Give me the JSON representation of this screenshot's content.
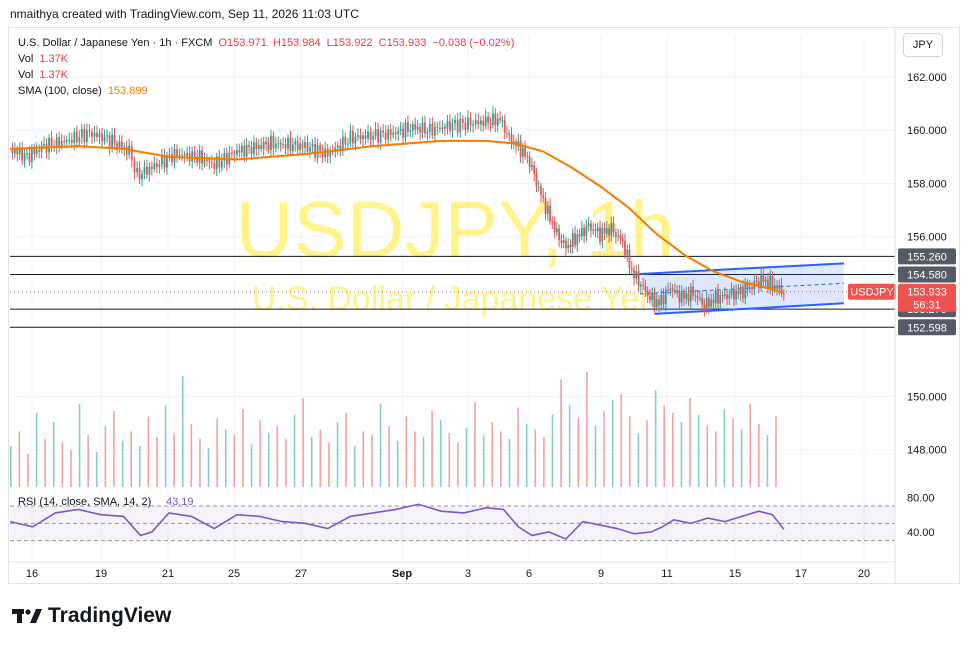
{
  "header": {
    "credit": "nmaithya created with TradingView.com, Sep 11, 2026 11:03 UTC"
  },
  "legend": {
    "symbol": "U.S. Dollar / Japanese Yen · 1h · FXCM",
    "open": "O153.971",
    "high": "H153.984",
    "low": "L153.922",
    "close": "C153.933",
    "change": "−0.038 (−0.02%)",
    "vol_label": "Vol",
    "vol_value": "1.37K",
    "sma_label": "SMA (100, close)",
    "sma_value": "153.899"
  },
  "currency_button": "JPY",
  "watermark": {
    "ticker": "USDJPY, 1h",
    "name": "U.S. Dollar / Japanese Yen"
  },
  "brand": {
    "name": "TradingView"
  },
  "colors": {
    "up": "#26a69a",
    "down": "#ef5350",
    "sma": "#f57c00",
    "channel": "#2962ff",
    "rsi": "#7e57c2",
    "hline": "#131722",
    "watermark": "#fff176"
  },
  "chart_data": {
    "type": "candlestick",
    "symbol": "USDJPY",
    "timeframe": "1h",
    "ylim": [
      146.6,
      163.2
    ],
    "y_ticks": [
      "162.000",
      "160.000",
      "158.000",
      "156.000",
      "150.000",
      "148.000"
    ],
    "x_ticks": [
      "16",
      "19",
      "21",
      "25",
      "27",
      "Sep",
      "3",
      "6",
      "9",
      "11",
      "15",
      "17",
      "20"
    ],
    "close_path": [
      {
        "x": 0,
        "y": 159.3
      },
      {
        "x": 15,
        "y": 159.0
      },
      {
        "x": 30,
        "y": 159.4
      },
      {
        "x": 50,
        "y": 159.6
      },
      {
        "x": 70,
        "y": 159.9
      },
      {
        "x": 90,
        "y": 159.6
      },
      {
        "x": 105,
        "y": 159.2
      },
      {
        "x": 112,
        "y": 158.3
      },
      {
        "x": 125,
        "y": 158.6
      },
      {
        "x": 145,
        "y": 159.1
      },
      {
        "x": 165,
        "y": 159.0
      },
      {
        "x": 180,
        "y": 158.7
      },
      {
        "x": 200,
        "y": 159.2
      },
      {
        "x": 230,
        "y": 159.5
      },
      {
        "x": 260,
        "y": 159.4
      },
      {
        "x": 280,
        "y": 159.1
      },
      {
        "x": 300,
        "y": 159.7
      },
      {
        "x": 320,
        "y": 159.8
      },
      {
        "x": 340,
        "y": 159.9
      },
      {
        "x": 355,
        "y": 160.1
      },
      {
        "x": 370,
        "y": 160.0
      },
      {
        "x": 390,
        "y": 160.2
      },
      {
        "x": 415,
        "y": 160.3
      },
      {
        "x": 432,
        "y": 160.4
      },
      {
        "x": 440,
        "y": 159.7
      },
      {
        "x": 450,
        "y": 159.3
      },
      {
        "x": 458,
        "y": 158.8
      },
      {
        "x": 466,
        "y": 157.8
      },
      {
        "x": 474,
        "y": 156.9
      },
      {
        "x": 482,
        "y": 156.1
      },
      {
        "x": 490,
        "y": 155.6
      },
      {
        "x": 500,
        "y": 156.0
      },
      {
        "x": 510,
        "y": 156.4
      },
      {
        "x": 520,
        "y": 156.1
      },
      {
        "x": 530,
        "y": 156.3
      },
      {
        "x": 540,
        "y": 155.8
      },
      {
        "x": 548,
        "y": 154.7
      },
      {
        "x": 556,
        "y": 154.2
      },
      {
        "x": 564,
        "y": 153.7
      },
      {
        "x": 572,
        "y": 153.5
      },
      {
        "x": 582,
        "y": 154.1
      },
      {
        "x": 592,
        "y": 153.7
      },
      {
        "x": 602,
        "y": 153.9
      },
      {
        "x": 612,
        "y": 153.4
      },
      {
        "x": 622,
        "y": 153.7
      },
      {
        "x": 632,
        "y": 153.8
      },
      {
        "x": 642,
        "y": 153.9
      },
      {
        "x": 652,
        "y": 154.1
      },
      {
        "x": 662,
        "y": 154.4
      },
      {
        "x": 672,
        "y": 154.2
      },
      {
        "x": 682,
        "y": 153.93
      }
    ],
    "sma100_path": [
      {
        "x": 0,
        "y": 159.3
      },
      {
        "x": 60,
        "y": 159.4
      },
      {
        "x": 100,
        "y": 159.3
      },
      {
        "x": 140,
        "y": 159.0
      },
      {
        "x": 200,
        "y": 158.9
      },
      {
        "x": 260,
        "y": 159.1
      },
      {
        "x": 320,
        "y": 159.4
      },
      {
        "x": 380,
        "y": 159.6
      },
      {
        "x": 420,
        "y": 159.6
      },
      {
        "x": 445,
        "y": 159.5
      },
      {
        "x": 470,
        "y": 159.2
      },
      {
        "x": 495,
        "y": 158.6
      },
      {
        "x": 520,
        "y": 157.9
      },
      {
        "x": 545,
        "y": 157.1
      },
      {
        "x": 570,
        "y": 156.1
      },
      {
        "x": 595,
        "y": 155.3
      },
      {
        "x": 620,
        "y": 154.7
      },
      {
        "x": 645,
        "y": 154.3
      },
      {
        "x": 665,
        "y": 154.1
      },
      {
        "x": 682,
        "y": 153.899
      }
    ],
    "horizontal_levels": [
      {
        "value": 155.26,
        "label": "155.260"
      },
      {
        "value": 154.58,
        "label": "154.580"
      },
      {
        "value": 153.279,
        "label": "153.279"
      },
      {
        "value": 152.598,
        "label": "152.598"
      }
    ],
    "last_price": {
      "symbol": "USDJPY",
      "value": 153.933,
      "label": "153.933",
      "countdown": "56:31"
    },
    "channel": {
      "upper": [
        {
          "x": 555,
          "y": 154.6
        },
        {
          "x": 735,
          "y": 155.0
        }
      ],
      "lower": [
        {
          "x": 568,
          "y": 153.1
        },
        {
          "x": 735,
          "y": 153.5
        }
      ]
    },
    "rsi": {
      "label": "RSI (14, close, SMA, 14, 2)",
      "value": "43.19",
      "ylim": [
        25,
        85
      ],
      "ticks": [
        "80.00",
        "40.00"
      ],
      "band": [
        30,
        70
      ],
      "path": [
        {
          "x": 0,
          "y": 52
        },
        {
          "x": 20,
          "y": 46
        },
        {
          "x": 40,
          "y": 62
        },
        {
          "x": 60,
          "y": 66
        },
        {
          "x": 80,
          "y": 60
        },
        {
          "x": 100,
          "y": 58
        },
        {
          "x": 115,
          "y": 36
        },
        {
          "x": 125,
          "y": 40
        },
        {
          "x": 140,
          "y": 62
        },
        {
          "x": 160,
          "y": 58
        },
        {
          "x": 180,
          "y": 44
        },
        {
          "x": 200,
          "y": 60
        },
        {
          "x": 220,
          "y": 58
        },
        {
          "x": 240,
          "y": 52
        },
        {
          "x": 260,
          "y": 50
        },
        {
          "x": 280,
          "y": 44
        },
        {
          "x": 300,
          "y": 58
        },
        {
          "x": 320,
          "y": 62
        },
        {
          "x": 340,
          "y": 66
        },
        {
          "x": 360,
          "y": 72
        },
        {
          "x": 380,
          "y": 64
        },
        {
          "x": 400,
          "y": 62
        },
        {
          "x": 420,
          "y": 68
        },
        {
          "x": 435,
          "y": 66
        },
        {
          "x": 448,
          "y": 46
        },
        {
          "x": 460,
          "y": 36
        },
        {
          "x": 475,
          "y": 40
        },
        {
          "x": 490,
          "y": 32
        },
        {
          "x": 505,
          "y": 52
        },
        {
          "x": 520,
          "y": 48
        },
        {
          "x": 535,
          "y": 44
        },
        {
          "x": 550,
          "y": 38
        },
        {
          "x": 565,
          "y": 40
        },
        {
          "x": 575,
          "y": 46
        },
        {
          "x": 585,
          "y": 54
        },
        {
          "x": 600,
          "y": 50
        },
        {
          "x": 615,
          "y": 56
        },
        {
          "x": 630,
          "y": 52
        },
        {
          "x": 645,
          "y": 58
        },
        {
          "x": 660,
          "y": 64
        },
        {
          "x": 672,
          "y": 60
        },
        {
          "x": 682,
          "y": 43.19
        }
      ]
    },
    "volume": {
      "label": "Vol",
      "value": "1.37K",
      "bars": [
        22,
        30,
        18,
        40,
        26,
        35,
        24,
        20,
        45,
        28,
        19,
        33,
        41,
        25,
        30,
        22,
        38,
        27,
        44,
        29,
        60,
        34,
        26,
        21,
        37,
        31,
        28,
        42,
        23,
        36,
        29,
        33,
        26,
        39,
        48,
        27,
        31,
        24,
        35,
        40,
        22,
        30,
        28,
        45,
        33,
        25,
        38,
        30,
        27,
        41,
        36,
        29,
        24,
        32,
        46,
        28,
        35,
        30,
        26,
        43,
        34,
        31,
        27,
        39,
        58,
        44,
        37,
        62,
        33,
        41,
        47,
        50,
        38,
        29,
        36,
        52,
        44,
        40,
        35,
        48,
        39,
        33,
        30,
        42,
        37,
        31,
        45,
        34,
        28,
        38
      ]
    }
  }
}
